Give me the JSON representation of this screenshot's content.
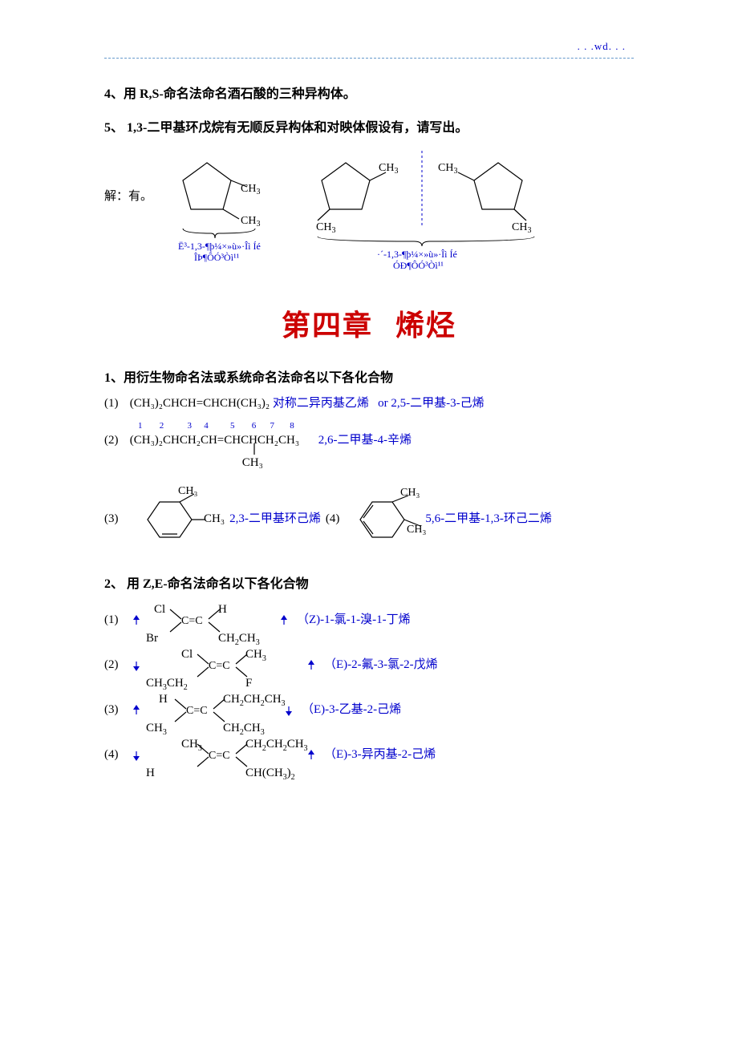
{
  "header": {
    "wd": ". . .wd. . ."
  },
  "q4": {
    "text": "4、用 R,S-命名法命名酒石酸的三种异构体。"
  },
  "q5": {
    "text": "5、  1,3-二甲基环戊烷有无顺反异构体和对映体假设有，请写出。",
    "ans_label": "解：有。",
    "cap1a": "Ë³-1,3-¶þ¼×»ù»·Îì Íé",
    "cap1b": "ÎÞ¶ÔÓ³Òì¹¹",
    "cap2a": "·´-1,3-¶þ¼×»ù»·Îì Íé",
    "cap2b": "ÓÐ¶ÔÓ³Òì¹¹",
    "ch3": "CH",
    "sub3": "3"
  },
  "chapter": {
    "title_a": "第四章",
    "title_b": "烯烃"
  },
  "sec1": {
    "heading": "1、用衍生物命名法或系统命名法命名以下各化合物",
    "i1": {
      "idx": "(1)",
      "formula": "(CH₃)₂CHCH=CHCH(CH₃)₂",
      "name_a": "对称二异丙基乙烯",
      "or": "or",
      "name_b": "2,5-二甲基-3-己烯"
    },
    "i2": {
      "idx": "(2)",
      "nums": [
        "1",
        "2",
        "3",
        "4",
        "5",
        "6",
        "7",
        "8"
      ],
      "formula_top": "(CH₃)₂CHCH₂CH=CHCHCH₂CH₃",
      "formula_bot": "CH₃",
      "name": "2,6-二甲基-4-辛烯"
    },
    "i3": {
      "idx": "(3)",
      "name_a": "2,3-二甲基环己烯",
      "mid": "(4)",
      "name_b": "5,6-二甲基-1,3-环己二烯",
      "ch3": "CH₃"
    }
  },
  "sec2": {
    "heading": "2、  用 Z,E-命名法命名以下各化合物",
    "items": [
      {
        "idx": "(1)",
        "tl": "Cl",
        "bl": "Br",
        "tr": "H",
        "br": "CH₂CH₃",
        "name": "（Z)-1-氯-1-溴-1-丁烯",
        "la": "up",
        "ra": "up"
      },
      {
        "idx": "(2)",
        "tl": "Cl",
        "bl": "CH₃CH₂",
        "tr": "CH₃",
        "br": "F",
        "name": "（E)-2-氟-3-氯-2-戊烯",
        "la": "down",
        "ra": "up"
      },
      {
        "idx": "(3)",
        "tl": "H",
        "bl": "CH₃",
        "tr": "CH₂CH₂CH₃",
        "br": "CH₂CH₃",
        "name": "（E)-3-乙基-2-己烯",
        "la": "up",
        "ra": "down"
      },
      {
        "idx": "(4)",
        "tl": "CH₃",
        "bl": "H",
        "tr": "CH₂CH₂CH₃",
        "br": "CH(CH₃)₂",
        "name": "（E)-3-异丙基-2-己烯",
        "la": "down",
        "ra": "up"
      }
    ]
  },
  "colors": {
    "blue": "#0000cc",
    "red": "#cc0000",
    "dash": "#6699cc"
  }
}
